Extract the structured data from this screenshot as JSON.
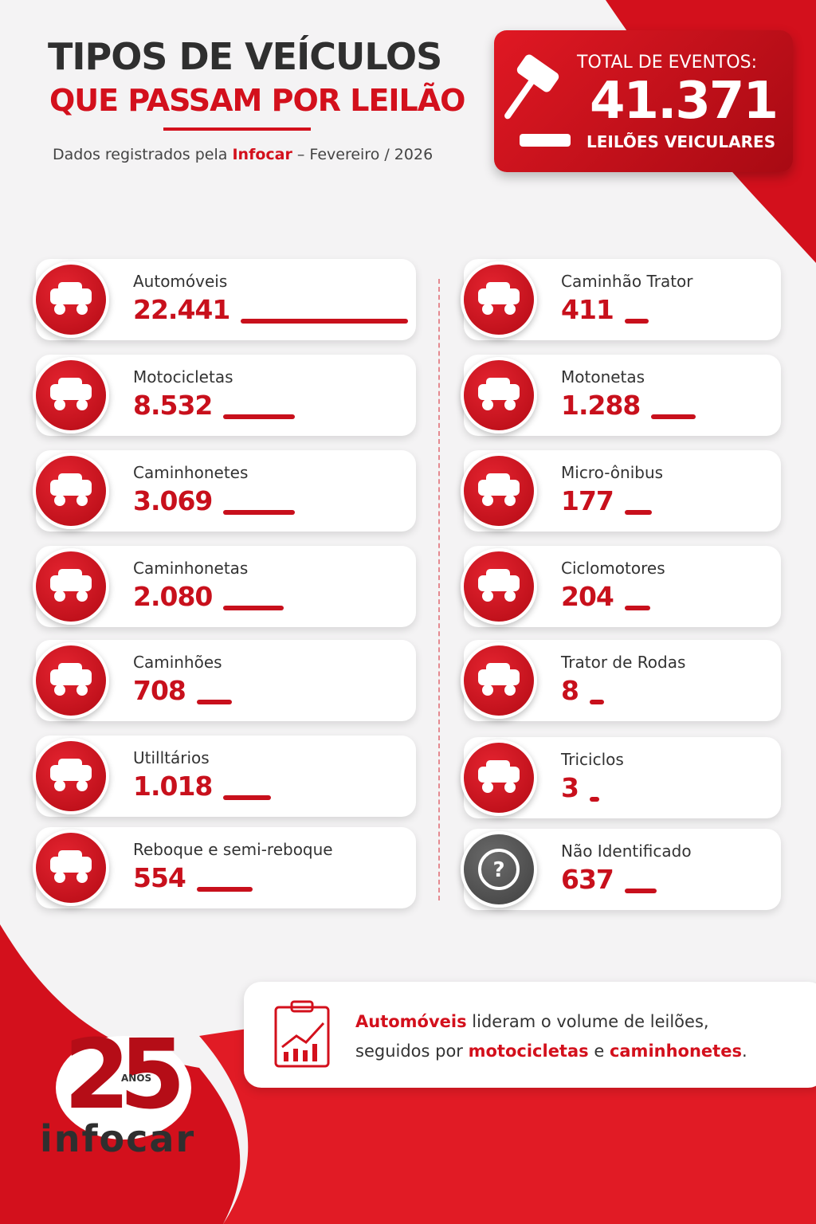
{
  "header": {
    "title_line1": "TIPOS DE VEÍCULOS",
    "title_line2": "QUE PASSAM POR LEILÃO",
    "subtitle": {
      "prefix": "Dados registrados pela",
      "brand": "Infocar",
      "suffix": "– Fevereiro / 2026"
    }
  },
  "total": {
    "label": "TOTAL DE EVENTOS:",
    "value": "41.371",
    "caption": "LEILÕES VEICULARES"
  },
  "left_items": [
    {
      "label": "Automóveis",
      "value": "22.441"
    },
    {
      "label": "Motocicletas",
      "value": "8.532"
    },
    {
      "label": "Caminhonetes",
      "value": "3.069"
    },
    {
      "label": "Caminhonetas",
      "value": "2.080"
    },
    {
      "label": "Caminhões",
      "value": "708"
    },
    {
      "label": "Utilltários",
      "value": "1.018"
    },
    {
      "label": "Reboque e semi-reboque",
      "value": "554"
    }
  ],
  "right_items": [
    {
      "label": "Caminhão Trator",
      "value": "411"
    },
    {
      "label": "Motonetas",
      "value": "1.288"
    },
    {
      "label": "Micro-ônibus",
      "value": "177"
    },
    {
      "label": "Ciclomotores",
      "value": "204"
    },
    {
      "label": "Trator de Rodas",
      "value": "8"
    },
    {
      "label": "Triciclos",
      "value": "3"
    },
    {
      "label": "Não Identificado",
      "value": "637"
    }
  ],
  "note": {
    "parts": [
      "Automóveis",
      " lideram o volume de leilões,",
      "seguidos por ",
      "motocicletas",
      " e ",
      "caminhonetes",
      "."
    ]
  },
  "logo": {
    "years": "25",
    "anos": "ANOS",
    "brand": "infocar"
  }
}
